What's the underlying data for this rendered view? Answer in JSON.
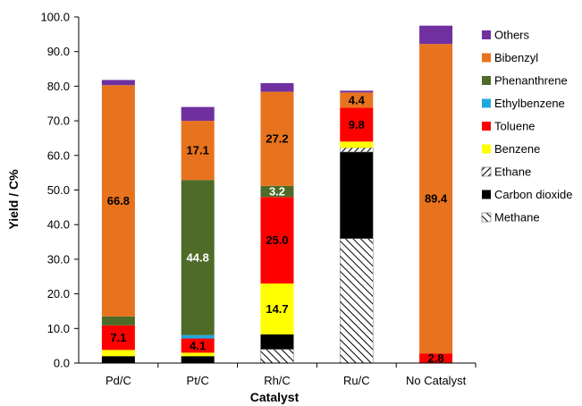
{
  "chart_data": {
    "type": "bar",
    "stacked": true,
    "title": "",
    "xlabel": "Catalyst",
    "ylabel": "Yield / C%",
    "ylim": [
      0,
      100
    ],
    "ytick_step": 10,
    "ytick_labels": [
      "0.0",
      "10.0",
      "20.0",
      "30.0",
      "40.0",
      "50.0",
      "60.0",
      "70.0",
      "80.0",
      "90.0",
      "100.0"
    ],
    "grid": false,
    "legend_position": "right",
    "categories": [
      "Pd/C",
      "Pt/C",
      "Rh/C",
      "Ru/C",
      "No Catalyst"
    ],
    "series": [
      {
        "name": "Methane",
        "color": "#ffffff",
        "pattern": "hatch-back",
        "values": [
          0,
          0,
          4.0,
          36.0,
          0
        ]
      },
      {
        "name": "Carbon dioxide",
        "color": "#000000",
        "values": [
          2.0,
          2.0,
          4.3,
          25.0,
          0
        ]
      },
      {
        "name": "Ethane",
        "color": "#ffffff",
        "pattern": "hatch-forward",
        "values": [
          0,
          0,
          0,
          1.2,
          0
        ]
      },
      {
        "name": "Benzene",
        "color": "#ffff00",
        "values": [
          1.8,
          1.0,
          14.7,
          1.8,
          0
        ]
      },
      {
        "name": "Toluene",
        "color": "#ff0000",
        "values": [
          7.1,
          4.1,
          25.0,
          9.8,
          2.8
        ]
      },
      {
        "name": "Ethylbenzene",
        "color": "#1fa8e0",
        "values": [
          0,
          1.0,
          0,
          0,
          0
        ]
      },
      {
        "name": "Phenanthrene",
        "color": "#4e6b28",
        "values": [
          2.6,
          44.8,
          3.2,
          0,
          0
        ]
      },
      {
        "name": "Bibenzyl",
        "color": "#e8731e",
        "values": [
          66.8,
          17.1,
          27.2,
          4.4,
          89.4
        ]
      },
      {
        "name": "Others",
        "color": "#7030a0",
        "values": [
          1.5,
          4.0,
          2.5,
          0.5,
          5.3
        ]
      }
    ],
    "legend_order": [
      "Others",
      "Bibenzyl",
      "Phenanthrene",
      "Ethylbenzene",
      "Toluene",
      "Benzene",
      "Ethane",
      "Carbon dioxide",
      "Methane"
    ],
    "data_labels": [
      {
        "category": "Pd/C",
        "series": "Toluene",
        "text": "7.1",
        "color": "#000000"
      },
      {
        "category": "Pd/C",
        "series": "Bibenzyl",
        "text": "66.8",
        "color": "#000000"
      },
      {
        "category": "Pt/C",
        "series": "Toluene",
        "text": "4.1",
        "color": "#000000"
      },
      {
        "category": "Pt/C",
        "series": "Phenanthrene",
        "text": "44.8",
        "color": "#ffffff"
      },
      {
        "category": "Pt/C",
        "series": "Bibenzyl",
        "text": "17.1",
        "color": "#000000"
      },
      {
        "category": "Rh/C",
        "series": "Benzene",
        "text": "14.7",
        "color": "#000000"
      },
      {
        "category": "Rh/C",
        "series": "Toluene",
        "text": "25.0",
        "color": "#000000"
      },
      {
        "category": "Rh/C",
        "series": "Phenanthrene",
        "text": "3.2",
        "color": "#ffffff"
      },
      {
        "category": "Rh/C",
        "series": "Bibenzyl",
        "text": "27.2",
        "color": "#000000"
      },
      {
        "category": "Ru/C",
        "series": "Toluene",
        "text": "9.8",
        "color": "#000000"
      },
      {
        "category": "Ru/C",
        "series": "Bibenzyl",
        "text": "4.4",
        "color": "#000000"
      },
      {
        "category": "No Catalyst",
        "series": "Toluene",
        "text": "2.8",
        "color": "#000000"
      },
      {
        "category": "No Catalyst",
        "series": "Bibenzyl",
        "text": "89.4",
        "color": "#000000"
      }
    ]
  }
}
